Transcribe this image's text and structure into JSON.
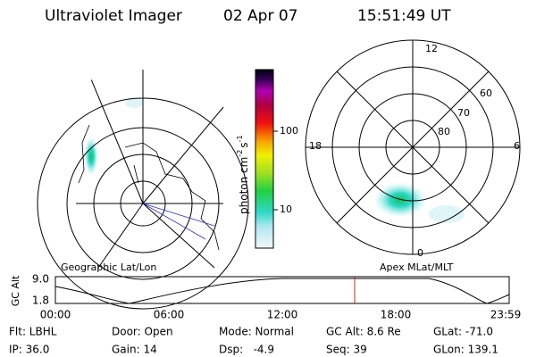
{
  "header": {
    "instrument": "Ultraviolet Imager",
    "date": "02 Apr 07",
    "time": "15:51:49 UT"
  },
  "colorbar": {
    "label": [
      "photon cm",
      "-2",
      "s",
      "-1"
    ],
    "ticks": [
      "100",
      "10"
    ]
  },
  "left_panel": {
    "caption": "Geographic Lat/Lon"
  },
  "right_panel": {
    "caption": "Apex MLat/MLT",
    "mlt_labels": [
      "12",
      "18",
      "6",
      "0"
    ],
    "lat_labels": [
      "60",
      "70",
      "80"
    ]
  },
  "orbit_plot": {
    "ylabel": "GC Alt",
    "yticks": [
      "9.0",
      "1.8"
    ],
    "xticks": [
      "00:00",
      "06:00",
      "12:00",
      "18:00",
      "23:59"
    ]
  },
  "info": {
    "rows": [
      [
        "Flt: LBHL",
        "Door: Open",
        "Mode: Normal",
        "GC Alt: 8.6 Re",
        "GLat: -71.0"
      ],
      [
        "IP: 36.0",
        "Gain: 14",
        "Dsp:   -4.9",
        "Seq: 39",
        "GLon: 139.1"
      ]
    ]
  }
}
